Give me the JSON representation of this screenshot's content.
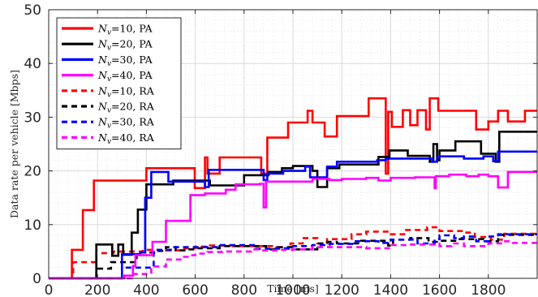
{
  "chart_data": {
    "type": "line",
    "xlabel": "Time [ms]",
    "ylabel": "Data rate per vehicle [Mbps]",
    "xlim": [
      0,
      2000
    ],
    "ylim": [
      0,
      50
    ],
    "xticks": [
      0,
      200,
      400,
      600,
      800,
      1000,
      1200,
      1400,
      1600,
      1800
    ],
    "yticks": [
      0,
      10,
      20,
      30,
      40,
      50
    ],
    "xtick_labels": [
      "0",
      "200",
      "400",
      "600",
      "800",
      "1000",
      "1200",
      "1400",
      "1600",
      "1800"
    ],
    "ytick_labels": [
      "0",
      "10",
      "20",
      "30",
      "40",
      "50"
    ],
    "grid": "major and minor (dotted)",
    "legend_position": "top-left",
    "step": true,
    "series": [
      {
        "name": "N_v=10, PA",
        "legend_prefix": "N",
        "legend_sub": "v",
        "legend_suffix": "=10, PA",
        "color": "#ff0000",
        "dash": "solid",
        "x": [
          0,
          95,
          140,
          185,
          400,
          598,
          640,
          650,
          700,
          870,
          895,
          980,
          1060,
          1080,
          1130,
          1180,
          1310,
          1380,
          1390,
          1405,
          1450,
          1480,
          1510,
          1545,
          1560,
          1595,
          1700,
          1750,
          1800,
          1840,
          1880,
          1950,
          2000
        ],
        "y": [
          0,
          5.3,
          12.7,
          18.2,
          20.5,
          16.8,
          22.5,
          19.5,
          22.5,
          19.5,
          26.2,
          29.0,
          31.2,
          29.0,
          26.4,
          30.2,
          33.5,
          19.5,
          31.0,
          28.2,
          31.3,
          28.5,
          31.3,
          27.7,
          33.5,
          31.2,
          31.2,
          27.7,
          29.2,
          31.2,
          29.2,
          31.2,
          31.2
        ]
      },
      {
        "name": "N_v=20, PA",
        "legend_prefix": "N",
        "legend_sub": "v",
        "legend_suffix": "=20, PA",
        "color": "#000000",
        "dash": "solid",
        "x": [
          0,
          195,
          260,
          285,
          305,
          340,
          365,
          400,
          510,
          590,
          660,
          800,
          900,
          955,
          1000,
          1080,
          1100,
          1140,
          1190,
          1350,
          1395,
          1470,
          1560,
          1575,
          1590,
          1600,
          1665,
          1770,
          1830,
          1845,
          2000
        ],
        "y": [
          0,
          6.3,
          4.2,
          6.3,
          4.4,
          8.5,
          12.8,
          17.5,
          18.2,
          18.2,
          17.3,
          19.2,
          19.8,
          20.5,
          20.9,
          20.0,
          17.0,
          20.5,
          21.2,
          22.6,
          23.8,
          22.8,
          21.7,
          25.0,
          22.0,
          23.8,
          25.5,
          23.2,
          21.7,
          27.3,
          27.3
        ]
      },
      {
        "name": "N_v=30, PA",
        "legend_prefix": "N",
        "legend_sub": "v",
        "legend_suffix": "=30, PA",
        "color": "#0000ff",
        "dash": "solid",
        "x": [
          0,
          300,
          375,
          395,
          420,
          490,
          640,
          655,
          770,
          880,
          895,
          960,
          1050,
          1070,
          1140,
          1180,
          1330,
          1345,
          1380,
          1440,
          1570,
          1590,
          1600,
          1650,
          1700,
          1780,
          1820,
          1840,
          2000
        ],
        "y": [
          0,
          4.5,
          4.8,
          15.0,
          19.8,
          18.0,
          17.0,
          20.2,
          20.2,
          18.3,
          19.5,
          20.0,
          20.8,
          18.8,
          20.8,
          21.7,
          21.7,
          22.0,
          22.3,
          22.3,
          21.7,
          22.5,
          22.7,
          22.7,
          22.3,
          22.7,
          21.8,
          23.6,
          23.6
        ]
      },
      {
        "name": "N_v=40, PA",
        "legend_prefix": "N",
        "legend_sub": "v",
        "legend_suffix": "=40, PA",
        "color": "#ff00ff",
        "dash": "solid",
        "x": [
          0,
          310,
          345,
          355,
          425,
          480,
          580,
          640,
          725,
          765,
          865,
          880,
          890,
          970,
          1050,
          1080,
          1150,
          1200,
          1300,
          1350,
          1400,
          1500,
          1580,
          1585,
          1600,
          1640,
          1710,
          1760,
          1800,
          1840,
          1880,
          2000
        ],
        "y": [
          0,
          0.5,
          2.3,
          4.3,
          6.8,
          10.7,
          15.5,
          15.8,
          16.5,
          17.5,
          17.6,
          13.2,
          18.0,
          18.0,
          18.0,
          18.5,
          18.3,
          18.5,
          18.7,
          18.2,
          18.7,
          18.8,
          16.8,
          19.0,
          19.0,
          19.3,
          19.0,
          19.3,
          19.0,
          16.9,
          19.8,
          19.8
        ]
      },
      {
        "name": "N_v=10, RA",
        "legend_prefix": "N",
        "legend_sub": "v",
        "legend_suffix": "=10, RA",
        "color": "#ff0000",
        "dash": "dashed",
        "x": [
          0,
          100,
          195,
          265,
          385,
          480,
          555,
          600,
          660,
          755,
          935,
          990,
          1040,
          1100,
          1140,
          1240,
          1300,
          1395,
          1455,
          1550,
          1600,
          1710,
          1745,
          1810,
          1865,
          2000
        ],
        "y": [
          0,
          3.0,
          4.7,
          5.0,
          5.3,
          5.2,
          5.6,
          5.9,
          6.1,
          6.0,
          5.5,
          6.5,
          7.5,
          6.5,
          7.3,
          8.2,
          8.7,
          8.2,
          9.0,
          9.5,
          8.8,
          8.5,
          7.7,
          7.2,
          8.3,
          8.3
        ]
      },
      {
        "name": "N_v=20, RA",
        "legend_prefix": "N",
        "legend_sub": "v",
        "legend_suffix": "=20, RA",
        "color": "#000000",
        "dash": "dashed",
        "x": [
          0,
          195,
          255,
          360,
          440,
          480,
          520,
          560,
          610,
          700,
          805,
          890,
          935,
          995,
          1100,
          1140,
          1180,
          1280,
          1390,
          1410,
          1480,
          1555,
          1595,
          1670,
          1780,
          1840,
          2000
        ],
        "y": [
          0,
          1.8,
          3.0,
          4.8,
          5.1,
          5.8,
          5.2,
          5.4,
          5.6,
          6.0,
          6.0,
          5.4,
          5.8,
          5.4,
          6.5,
          6.8,
          6.5,
          7.0,
          6.1,
          7.2,
          7.5,
          6.8,
          7.0,
          7.3,
          6.9,
          8.1,
          8.1
        ]
      },
      {
        "name": "N_v=30, RA",
        "legend_prefix": "N",
        "legend_sub": "v",
        "legend_suffix": "=30, RA",
        "color": "#0000ff",
        "dash": "dashed",
        "x": [
          0,
          300,
          430,
          500,
          600,
          700,
          820,
          840,
          930,
          1000,
          1080,
          1150,
          1250,
          1350,
          1400,
          1440,
          1490,
          1510,
          1580,
          1600,
          1660,
          1700,
          1750,
          1800,
          1840,
          2000
        ],
        "y": [
          0,
          2.0,
          5.3,
          5.8,
          5.8,
          6.2,
          6.2,
          5.5,
          5.6,
          6.0,
          6.2,
          6.4,
          6.9,
          6.6,
          7.2,
          7.2,
          7.3,
          6.5,
          7.3,
          8.0,
          7.5,
          7.8,
          6.9,
          7.8,
          8.2,
          8.2
        ]
      },
      {
        "name": "N_v=40, RA",
        "legend_prefix": "N",
        "legend_sub": "v",
        "legend_suffix": "=40, RA",
        "color": "#ff00ff",
        "dash": "dashed",
        "x": [
          0,
          340,
          420,
          480,
          540,
          580,
          600,
          650,
          710,
          800,
          830,
          870,
          940,
          1000,
          1080,
          1200,
          1300,
          1370,
          1400,
          1470,
          1580,
          1600,
          1650,
          1700,
          1800,
          1860,
          1900,
          2000
        ],
        "y": [
          0,
          0.8,
          2.2,
          3.5,
          4.0,
          4.3,
          4.6,
          4.9,
          5.0,
          5.0,
          5.4,
          5.2,
          5.3,
          5.4,
          5.8,
          5.8,
          5.6,
          5.6,
          6.2,
          6.3,
          6.4,
          6.0,
          6.5,
          6.0,
          6.5,
          6.9,
          6.6,
          6.6
        ]
      }
    ]
  }
}
